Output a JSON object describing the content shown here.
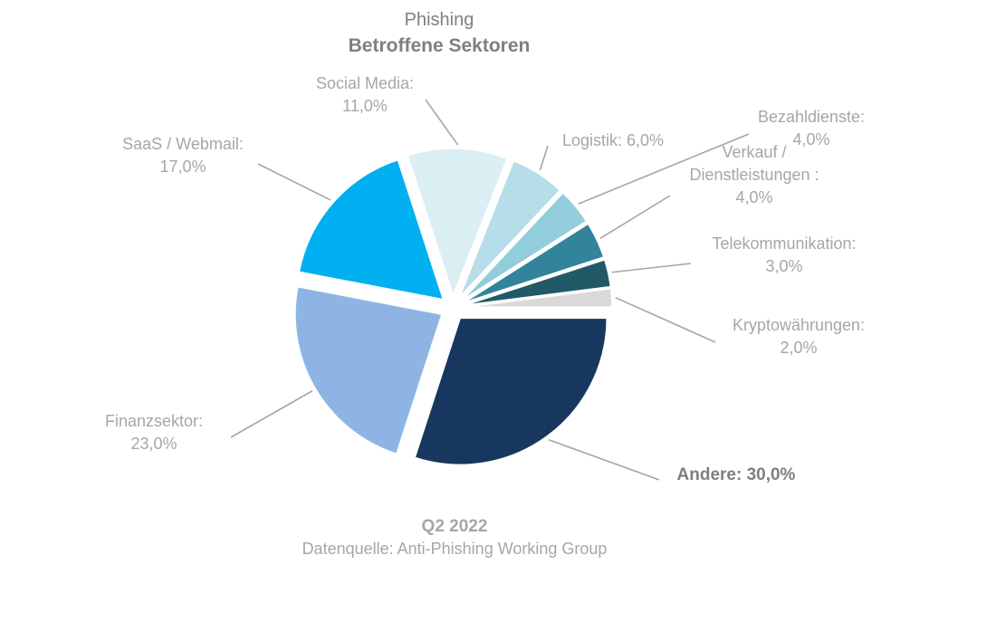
{
  "chart_data": {
    "type": "pie",
    "title": "Phishing",
    "subtitle": "Betroffene Sektoren",
    "period": "Q2 2022",
    "source": "Datenquelle: Anti-Phishing Working Group",
    "series": [
      {
        "slices": [
          {
            "label_lines": [
              "Andere: 30,0%"
            ],
            "value": 30.0,
            "color": "#17375e",
            "emphasis": true
          },
          {
            "label_lines": [
              "Finanzsektor:",
              "23,0%"
            ],
            "value": 23.0,
            "color": "#8eb4e3"
          },
          {
            "label_lines": [
              "SaaS / Webmail:",
              "17,0%"
            ],
            "value": 17.0,
            "color": "#00b0f0"
          },
          {
            "label_lines": [
              "Social Media:",
              "11,0%"
            ],
            "value": 11.0,
            "color": "#daeef3"
          },
          {
            "label_lines": [
              "Logistik: 6,0%"
            ],
            "value": 6.0,
            "color": "#b7dee8"
          },
          {
            "label_lines": [
              "Bezahldienste:",
              "4,0%"
            ],
            "value": 4.0,
            "color": "#92cddc"
          },
          {
            "label_lines": [
              "Verkauf /",
              "Dienstleistungen :",
              "4,0%"
            ],
            "value": 4.0,
            "color": "#31849b"
          },
          {
            "label_lines": [
              "Telekommunikation:",
              "3,0%"
            ],
            "value": 3.0,
            "color": "#215967"
          },
          {
            "label_lines": [
              "Kryptowährungen:",
              "2,0%"
            ],
            "value": 2.0,
            "color": "#d9d9d9"
          }
        ]
      }
    ]
  }
}
